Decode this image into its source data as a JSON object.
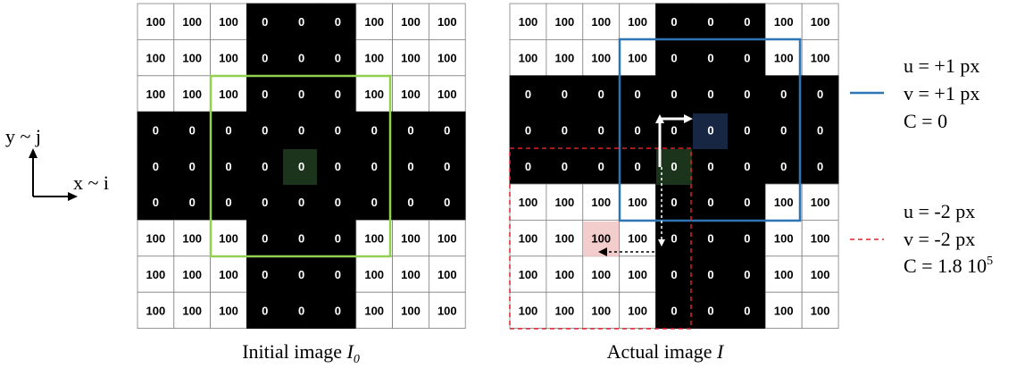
{
  "left_grid": {
    "caption_prefix": "Initial image ",
    "caption_symbol": "I",
    "caption_sub": "0",
    "values": [
      [
        "100",
        "100",
        "100",
        "0",
        "0",
        "0",
        "100",
        "100",
        "100"
      ],
      [
        "100",
        "100",
        "100",
        "0",
        "0",
        "0",
        "100",
        "100",
        "100"
      ],
      [
        "100",
        "100",
        "100",
        "0",
        "0",
        "0",
        "100",
        "100",
        "100"
      ],
      [
        "0",
        "0",
        "0",
        "0",
        "0",
        "0",
        "0",
        "0",
        "0"
      ],
      [
        "0",
        "0",
        "0",
        "0",
        "0",
        "0",
        "0",
        "0",
        "0"
      ],
      [
        "0",
        "0",
        "0",
        "0",
        "0",
        "0",
        "0",
        "0",
        "0"
      ],
      [
        "100",
        "100",
        "100",
        "0",
        "0",
        "0",
        "100",
        "100",
        "100"
      ],
      [
        "100",
        "100",
        "100",
        "0",
        "0",
        "0",
        "100",
        "100",
        "100"
      ],
      [
        "100",
        "100",
        "100",
        "0",
        "0",
        "0",
        "100",
        "100",
        "100"
      ]
    ]
  },
  "right_grid": {
    "caption_prefix": "Actual image ",
    "caption_symbol": "I",
    "values": [
      [
        "100",
        "100",
        "100",
        "100",
        "0",
        "0",
        "0",
        "100",
        "100"
      ],
      [
        "100",
        "100",
        "100",
        "100",
        "0",
        "0",
        "0",
        "100",
        "100"
      ],
      [
        "0",
        "0",
        "0",
        "0",
        "0",
        "0",
        "0",
        "0",
        "0"
      ],
      [
        "0",
        "0",
        "0",
        "0",
        "0",
        "0",
        "0",
        "0",
        "0"
      ],
      [
        "0",
        "0",
        "0",
        "0",
        "0",
        "0",
        "0",
        "0",
        "0"
      ],
      [
        "100",
        "100",
        "100",
        "100",
        "0",
        "0",
        "0",
        "100",
        "100"
      ],
      [
        "100",
        "100",
        "100",
        "100",
        "0",
        "0",
        "0",
        "100",
        "100"
      ],
      [
        "100",
        "100",
        "100",
        "100",
        "0",
        "0",
        "0",
        "100",
        "100"
      ],
      [
        "100",
        "100",
        "100",
        "100",
        "0",
        "0",
        "0",
        "100",
        "100"
      ]
    ]
  },
  "axes": {
    "y_label": "y ~ j",
    "x_label": "x ~ i"
  },
  "legend": {
    "solid": {
      "u": "u = +1 px",
      "v": "v = +1 px",
      "c": "C = 0",
      "color": "#2e75b6"
    },
    "dashed": {
      "u": "u = -2 px",
      "v": "v = -2 px",
      "c_base": "C = 1.8 10",
      "c_exp": "5",
      "color": "#e0202a"
    }
  },
  "colors": {
    "green_window": "#92d050",
    "black_cell": "#000000",
    "white_cell": "#ffffff",
    "grid_line": "#7f7f7f"
  }
}
